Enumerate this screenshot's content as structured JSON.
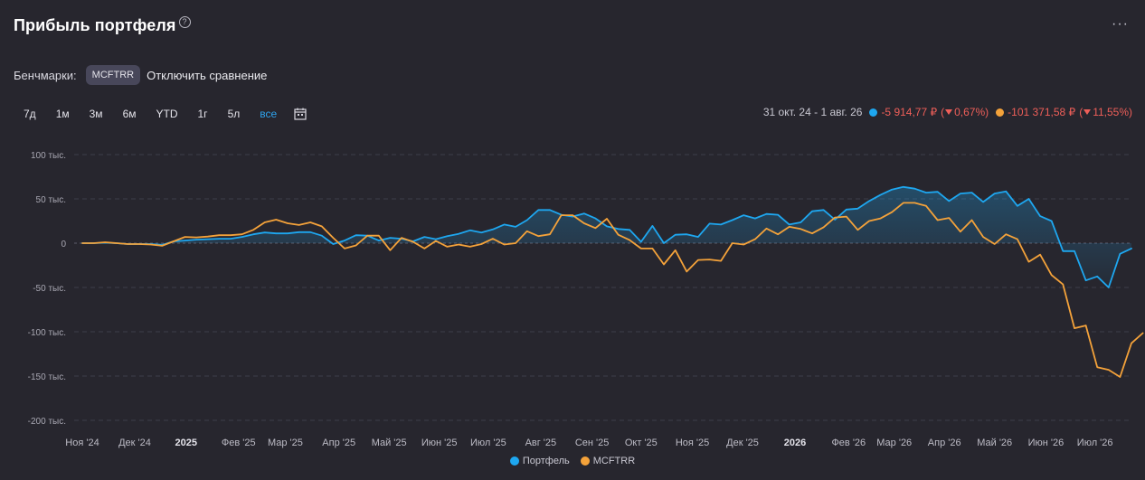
{
  "header": {
    "title": "Прибыль портфеля",
    "help_icon": "?",
    "more_icon": "···"
  },
  "benchmarks": {
    "label": "Бенчмарки:",
    "chip": "MCFTRR",
    "disable": "Отключить сравнение"
  },
  "periods": [
    "7д",
    "1м",
    "3м",
    "6м",
    "YTD",
    "1г",
    "5л",
    "все"
  ],
  "active_period": "все",
  "summary": {
    "range": "31 окт. 24 - 1 авг. 26",
    "portfolio_value": "-5 914,77 ₽",
    "portfolio_pct": "0,67%)",
    "benchmark_value": "-101 371,58 ₽",
    "benchmark_pct": "11,55%)"
  },
  "colors": {
    "portfolio": "#1ea7f0",
    "benchmark": "#f4a23a",
    "negative": "#ef5f59",
    "background": "#27262e"
  },
  "legend": {
    "portfolio": "Портфель",
    "benchmark": "MCFTRR"
  },
  "chart_data": {
    "type": "line",
    "ylim": [
      -200000,
      100000
    ],
    "y_ticks": [
      {
        "value": 100000,
        "label": "100 тыс."
      },
      {
        "value": 50000,
        "label": "50 тыс."
      },
      {
        "value": 0,
        "label": "0"
      },
      {
        "value": -50000,
        "label": "-50 тыс."
      },
      {
        "value": -100000,
        "label": "-100 тыс."
      },
      {
        "value": -150000,
        "label": "-150 тыс."
      },
      {
        "value": -200000,
        "label": "-200 тыс."
      }
    ],
    "x_ticks": [
      {
        "i": 0,
        "label": "Ноя '24",
        "bold": false
      },
      {
        "i": 4.6,
        "label": "Дек '24",
        "bold": false
      },
      {
        "i": 9.1,
        "label": "2025",
        "bold": true
      },
      {
        "i": 13.7,
        "label": "Фев '25",
        "bold": false
      },
      {
        "i": 17.8,
        "label": "Мар '25",
        "bold": false
      },
      {
        "i": 22.5,
        "label": "Апр '25",
        "bold": false
      },
      {
        "i": 26.9,
        "label": "Май '25",
        "bold": false
      },
      {
        "i": 31.3,
        "label": "Июн '25",
        "bold": false
      },
      {
        "i": 35.6,
        "label": "Июл '25",
        "bold": false
      },
      {
        "i": 40.2,
        "label": "Авг '25",
        "bold": false
      },
      {
        "i": 44.7,
        "label": "Сен '25",
        "bold": false
      },
      {
        "i": 49.0,
        "label": "Окт '25",
        "bold": false
      },
      {
        "i": 53.5,
        "label": "Ноя '25",
        "bold": false
      },
      {
        "i": 57.9,
        "label": "Дек '25",
        "bold": false
      },
      {
        "i": 62.5,
        "label": "2026",
        "bold": true
      },
      {
        "i": 67.2,
        "label": "Фев '26",
        "bold": false
      },
      {
        "i": 71.2,
        "label": "Мар '26",
        "bold": false
      },
      {
        "i": 75.6,
        "label": "Апр '26",
        "bold": false
      },
      {
        "i": 80.0,
        "label": "Май '26",
        "bold": false
      },
      {
        "i": 84.5,
        "label": "Июн '26",
        "bold": false
      },
      {
        "i": 88.8,
        "label": "Июл '26",
        "bold": false
      }
    ],
    "series": [
      {
        "name": "Портфель",
        "values": [
          0,
          0,
          500,
          0,
          -1000,
          -1000,
          -1000,
          -2000,
          2000,
          3000,
          4000,
          4500,
          5000,
          5000,
          7000,
          10000,
          12000,
          11000,
          11000,
          12500,
          12500,
          8500,
          -1000,
          3000,
          9000,
          8500,
          3000,
          6000,
          5000,
          2000,
          7000,
          4500,
          8000,
          10500,
          14500,
          12000,
          15500,
          21000,
          18500,
          26000,
          37500,
          37500,
          32000,
          30000,
          33500,
          28000,
          19000,
          16000,
          15000,
          1500,
          19500,
          0,
          9500,
          10000,
          7000,
          22000,
          21000,
          26000,
          31500,
          28000,
          33000,
          32000,
          21000,
          23500,
          36000,
          37500,
          26500,
          38000,
          39000,
          47500,
          54500,
          60500,
          63500,
          61500,
          57000,
          58000,
          47500,
          56000,
          57000,
          46500,
          56000,
          58500,
          42000,
          50000,
          30500,
          25000,
          -9000,
          -9000,
          -42000,
          -37500,
          -50000,
          -12000,
          -6000
        ]
      },
      {
        "name": "MCFTRR",
        "values": [
          0,
          0,
          1000,
          0,
          -1000,
          -1000,
          -1500,
          -3000,
          2000,
          7000,
          6500,
          7500,
          9000,
          9000,
          10000,
          15000,
          23500,
          26500,
          22500,
          20500,
          23500,
          19000,
          6000,
          -6000,
          -2500,
          8500,
          8500,
          -8000,
          6000,
          1500,
          -6000,
          2500,
          -4000,
          -1500,
          -4000,
          -1000,
          5000,
          -1500,
          0,
          13500,
          8000,
          10000,
          31500,
          31500,
          22500,
          17000,
          27500,
          9500,
          3500,
          -6000,
          -6000,
          -24000,
          -8000,
          -32000,
          -19000,
          -18500,
          -20000,
          0,
          -1500,
          4500,
          16500,
          10000,
          18500,
          16000,
          11000,
          18000,
          29000,
          30000,
          15000,
          25000,
          28000,
          35000,
          45500,
          45500,
          42000,
          26000,
          28500,
          13000,
          26000,
          7000,
          -1000,
          10000,
          4500,
          -21000,
          -13000,
          -36000,
          -46500,
          -96000,
          -93000,
          -140000,
          -143000,
          -151000,
          -113000,
          -101500
        ]
      }
    ]
  }
}
